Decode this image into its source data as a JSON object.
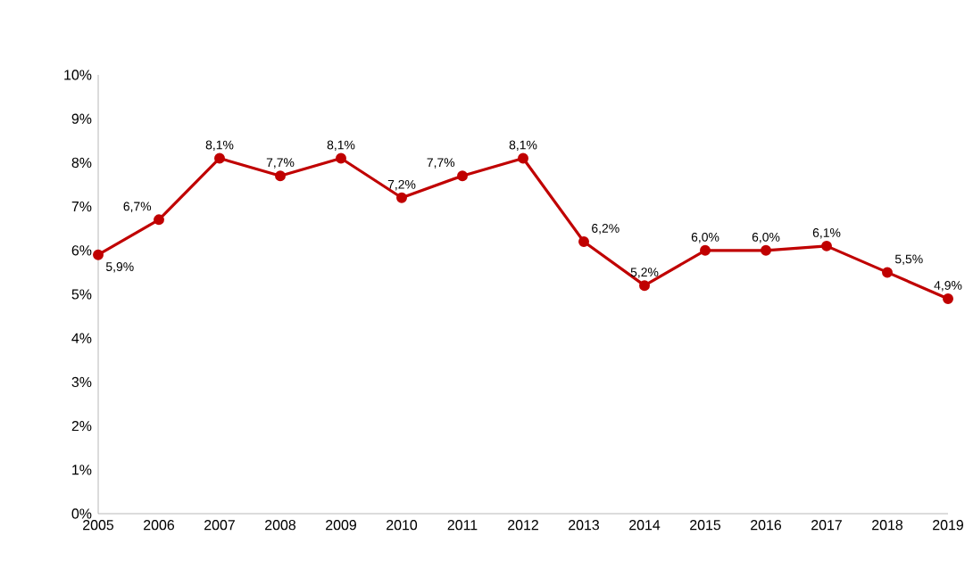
{
  "chart_data": {
    "type": "line",
    "categories": [
      "2005",
      "2006",
      "2007",
      "2008",
      "2009",
      "2010",
      "2011",
      "2012",
      "2013",
      "2014",
      "2015",
      "2016",
      "2017",
      "2018",
      "2019"
    ],
    "values": [
      5.9,
      6.7,
      8.1,
      7.7,
      8.1,
      7.2,
      7.7,
      8.1,
      6.2,
      5.2,
      6.0,
      6.0,
      6.1,
      5.5,
      4.9
    ],
    "value_labels": [
      "5,9%",
      "6,7%",
      "8,1%",
      "7,7%",
      "8,1%",
      "7,2%",
      "7,7%",
      "8,1%",
      "6,2%",
      "5,2%",
      "6,0%",
      "6,0%",
      "6,1%",
      "5,5%",
      "4,9%"
    ],
    "color": "#c00000",
    "marker": "circle",
    "line_style": "solid",
    "ylim": [
      0,
      10
    ],
    "yticks": [
      {
        "value": 0,
        "label": "0%"
      },
      {
        "value": 1,
        "label": "1%"
      },
      {
        "value": 2,
        "label": "2%"
      },
      {
        "value": 3,
        "label": "3%"
      },
      {
        "value": 4,
        "label": "4%"
      },
      {
        "value": 5,
        "label": "5%"
      },
      {
        "value": 6,
        "label": "6%"
      },
      {
        "value": 7,
        "label": "7%"
      },
      {
        "value": 8,
        "label": "8%"
      },
      {
        "value": 9,
        "label": "9%"
      },
      {
        "value": 10,
        "label": "10%"
      }
    ]
  }
}
